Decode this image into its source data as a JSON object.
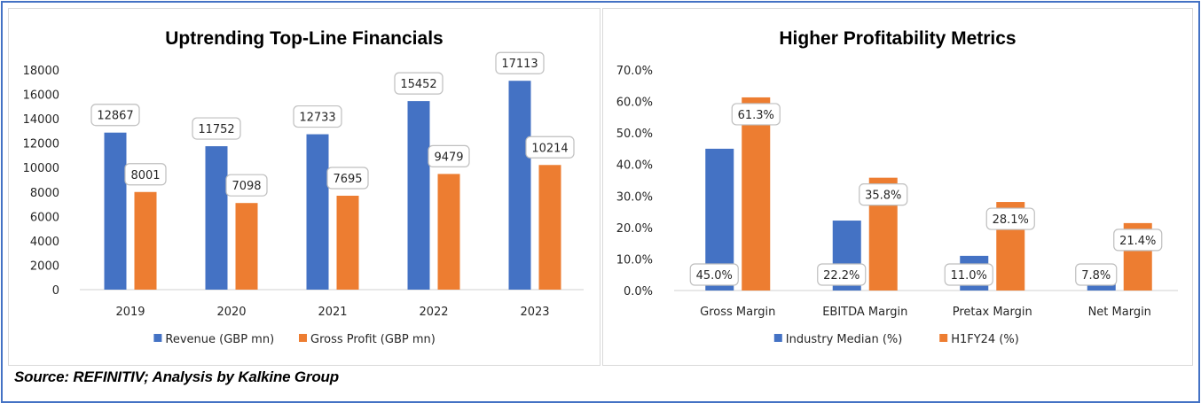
{
  "source_note": "Source: REFINITIV; Analysis by Kalkine Group",
  "colors": {
    "series1": "#4472C4",
    "series2": "#ED7D31",
    "frame": "#4472C4"
  },
  "chart_data": [
    {
      "type": "bar",
      "title": "Uptrending Top-Line Financials",
      "categories": [
        "2019",
        "2020",
        "2021",
        "2022",
        "2023"
      ],
      "series": [
        {
          "name": "Revenue (GBP mn)",
          "values": [
            12867,
            11752,
            12733,
            15452,
            17113
          ],
          "labels": [
            "12867",
            "11752",
            "12733",
            "15452",
            "17113"
          ]
        },
        {
          "name": "Gross Profit (GBP mn)",
          "values": [
            8001,
            7098,
            7695,
            9479,
            10214
          ],
          "labels": [
            "8001",
            "7098",
            "7695",
            "9479",
            "10214"
          ]
        }
      ],
      "yticks": [
        "0",
        "2000",
        "4000",
        "6000",
        "8000",
        "10000",
        "12000",
        "14000",
        "16000",
        "18000"
      ],
      "ylim": [
        0,
        18000
      ],
      "xlabel": "",
      "ylabel": "",
      "grid": false,
      "legend": "bottom"
    },
    {
      "type": "bar",
      "title": "Higher Profitability Metrics",
      "categories": [
        "Gross Margin",
        "EBITDA Margin",
        "Pretax Margin",
        "Net Margin"
      ],
      "series": [
        {
          "name": "Industry Median (%)",
          "values": [
            45.0,
            22.2,
            11.0,
            7.8
          ],
          "labels": [
            "45.0%",
            "22.2%",
            "11.0%",
            "7.8%"
          ]
        },
        {
          "name": "H1FY24 (%)",
          "values": [
            61.3,
            35.8,
            28.1,
            21.4
          ],
          "labels": [
            "61.3%",
            "35.8%",
            "28.1%",
            "21.4%"
          ]
        }
      ],
      "yticks": [
        "0.0%",
        "10.0%",
        "20.0%",
        "30.0%",
        "40.0%",
        "50.0%",
        "60.0%",
        "70.0%"
      ],
      "ylim": [
        0,
        70
      ],
      "xlabel": "",
      "ylabel": "",
      "grid": false,
      "legend": "bottom"
    }
  ]
}
